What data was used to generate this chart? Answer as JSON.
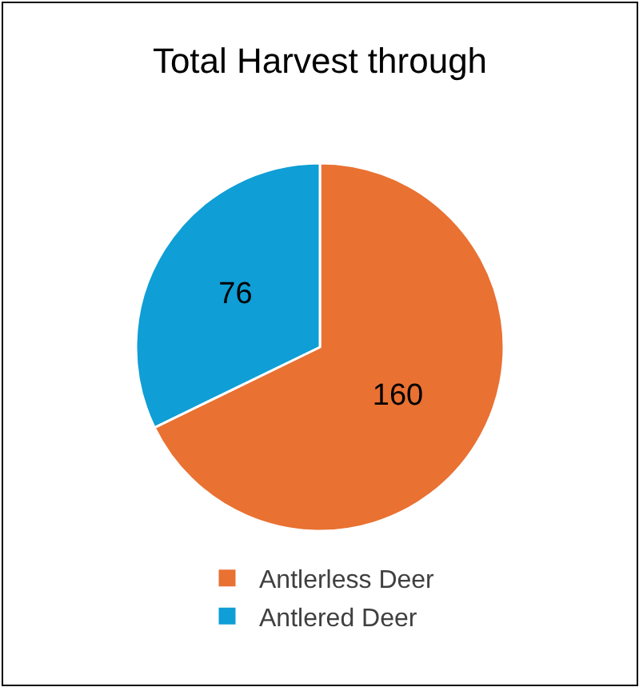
{
  "chart_data": {
    "type": "pie",
    "title": "Total Harvest through",
    "categories": [
      "Antlerless Deer",
      "Antlered Deer"
    ],
    "values": [
      160,
      76
    ],
    "colors": [
      "#e97132",
      "#0f9ed5"
    ],
    "data_labels": true,
    "legend": "bottom"
  }
}
